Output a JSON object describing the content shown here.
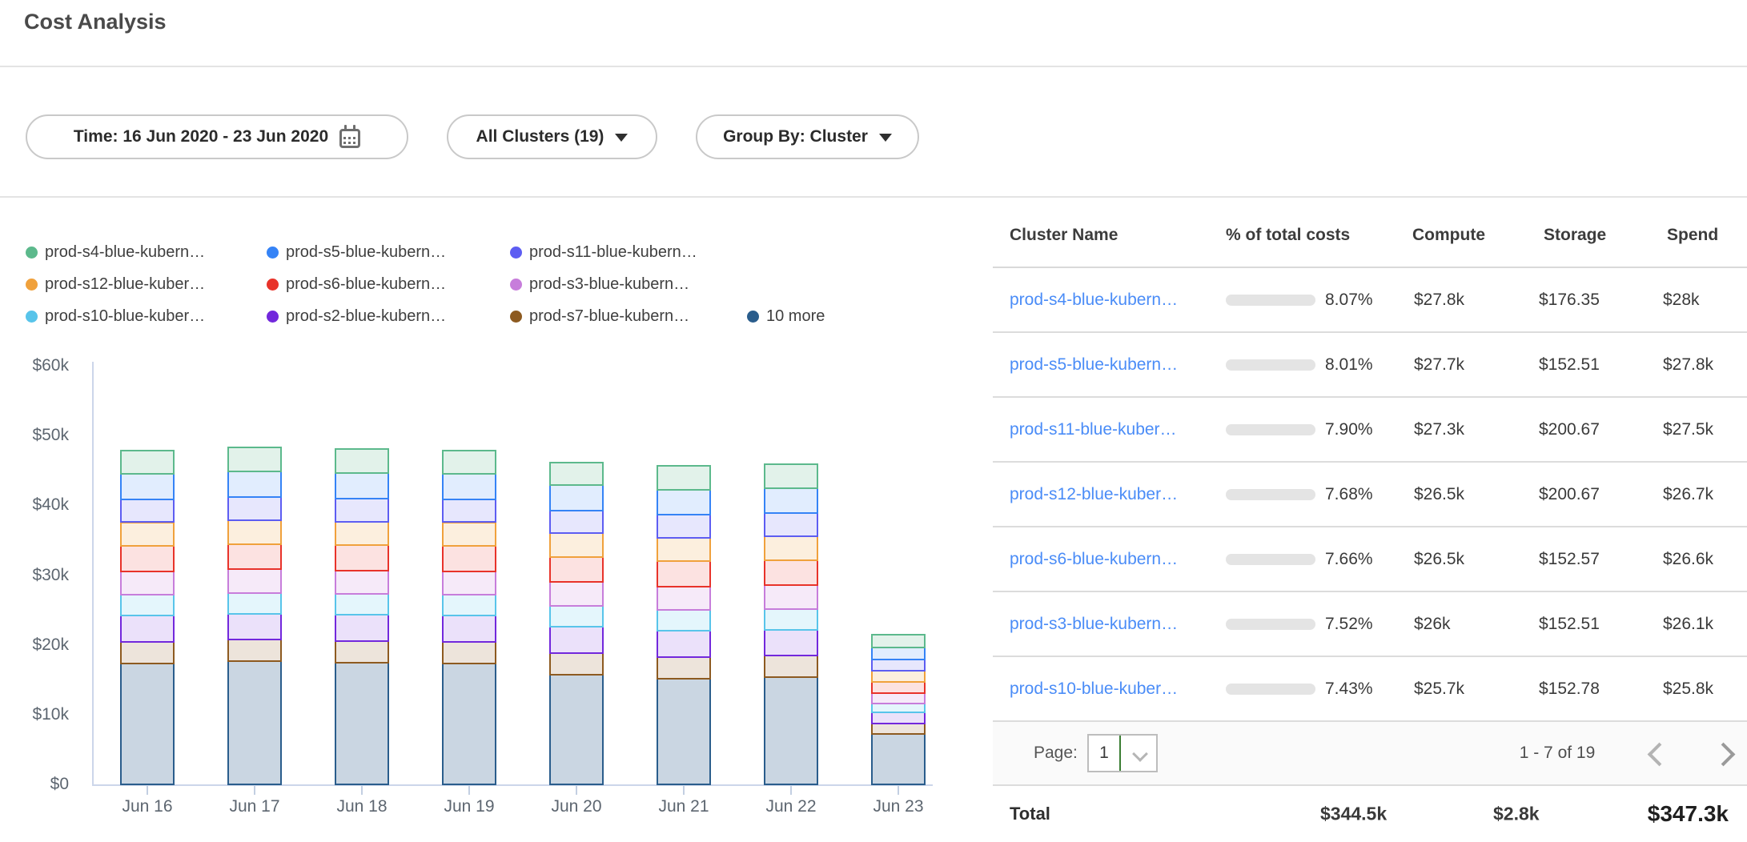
{
  "page": {
    "title": "Cost Analysis"
  },
  "filters": {
    "time_label": "Time: 16 Jun 2020 - 23 Jun 2020",
    "clusters_label": "All Clusters (19)",
    "group_by_label": "Group By: Cluster"
  },
  "chart_data": {
    "type": "bar",
    "stacked": true,
    "unit": "USD thousands",
    "categories": [
      "Jun 16",
      "Jun 17",
      "Jun 18",
      "Jun 19",
      "Jun 20",
      "Jun 21",
      "Jun 22",
      "Jun 23"
    ],
    "series": [
      {
        "name": "10 more",
        "color": "#2a5d8c",
        "fill_alpha": 0.25,
        "values": [
          17.6,
          17.9,
          17.7,
          17.6,
          16.0,
          15.4,
          15.6,
          7.5
        ]
      },
      {
        "name": "prod-s7-blue-kubern…",
        "color": "#8d5a20",
        "fill_alpha": 0.16,
        "values": [
          3.1,
          3.1,
          3.1,
          3.1,
          3.1,
          3.1,
          3.1,
          1.5
        ]
      },
      {
        "name": "prod-s2-blue-kubern…",
        "color": "#7228dc",
        "fill_alpha": 0.14,
        "values": [
          3.7,
          3.7,
          3.7,
          3.7,
          3.7,
          3.7,
          3.7,
          1.5
        ]
      },
      {
        "name": "prod-s10-blue-kuber…",
        "color": "#58c4ea",
        "fill_alpha": 0.16,
        "values": [
          3.0,
          3.0,
          3.0,
          3.0,
          3.0,
          3.0,
          3.0,
          1.3
        ]
      },
      {
        "name": "prod-s3-blue-kubern…",
        "color": "#c77ddb",
        "fill_alpha": 0.16,
        "values": [
          3.4,
          3.4,
          3.4,
          3.4,
          3.4,
          3.4,
          3.4,
          1.5
        ]
      },
      {
        "name": "prod-s6-blue-kubern…",
        "color": "#e8332a",
        "fill_alpha": 0.14,
        "values": [
          3.6,
          3.6,
          3.6,
          3.6,
          3.6,
          3.6,
          3.6,
          1.6
        ]
      },
      {
        "name": "prod-s12-blue-kuber…",
        "color": "#f0a13c",
        "fill_alpha": 0.17,
        "values": [
          3.4,
          3.4,
          3.4,
          3.4,
          3.4,
          3.4,
          3.4,
          1.6
        ]
      },
      {
        "name": "prod-s11-blue-kubern…",
        "color": "#5d5df2",
        "fill_alpha": 0.15,
        "values": [
          3.3,
          3.3,
          3.3,
          3.3,
          3.3,
          3.3,
          3.3,
          1.6
        ]
      },
      {
        "name": "prod-s5-blue-kubern…",
        "color": "#3583f6",
        "fill_alpha": 0.15,
        "values": [
          3.6,
          3.7,
          3.7,
          3.6,
          3.6,
          3.6,
          3.6,
          1.7
        ]
      },
      {
        "name": "prod-s4-blue-kubern…",
        "color": "#5cb98c",
        "fill_alpha": 0.18,
        "values": [
          3.4,
          3.4,
          3.4,
          3.4,
          3.3,
          3.4,
          3.4,
          1.9
        ]
      }
    ],
    "legend": [
      {
        "label": "prod-s4-blue-kubern…",
        "color": "#5cb98c"
      },
      {
        "label": "prod-s5-blue-kubern…",
        "color": "#3583f6"
      },
      {
        "label": "prod-s11-blue-kubern…",
        "color": "#5d5df2"
      },
      {
        "label": "prod-s12-blue-kuber…",
        "color": "#f0a13c"
      },
      {
        "label": "prod-s6-blue-kubern…",
        "color": "#e8332a"
      },
      {
        "label": "prod-s3-blue-kubern…",
        "color": "#c77ddb"
      },
      {
        "label": "prod-s10-blue-kuber…",
        "color": "#58c4ea"
      },
      {
        "label": "prod-s2-blue-kubern…",
        "color": "#7228dc"
      },
      {
        "label": "prod-s7-blue-kubern…",
        "color": "#8d5a20"
      },
      {
        "label": "10 more",
        "color": "#2a5d8c"
      }
    ],
    "title": "",
    "xlabel": "",
    "ylabel": "",
    "ylim": [
      0,
      60
    ],
    "y_ticks": [
      {
        "label": "$60k",
        "value": 60
      },
      {
        "label": "$50k",
        "value": 50
      },
      {
        "label": "$40k",
        "value": 40
      },
      {
        "label": "$30k",
        "value": 30
      },
      {
        "label": "$20k",
        "value": 20
      },
      {
        "label": "$10k",
        "value": 10
      },
      {
        "label": "$0",
        "value": 0
      }
    ],
    "grid": false,
    "legend_position": "top-left"
  },
  "table": {
    "headers": {
      "name": "Cluster Name",
      "pct": "% of total costs",
      "compute": "Compute",
      "storage": "Storage",
      "spend": "Spend"
    },
    "rows": [
      {
        "name": "prod-s4-blue-kubern…",
        "pct": "8.07%",
        "pct_value": 8.07,
        "compute": "$27.8k",
        "storage": "$176.35",
        "spend": "$28k"
      },
      {
        "name": "prod-s5-blue-kubern…",
        "pct": "8.01%",
        "pct_value": 8.01,
        "compute": "$27.7k",
        "storage": "$152.51",
        "spend": "$27.8k"
      },
      {
        "name": "prod-s11-blue-kuber…",
        "pct": "7.90%",
        "pct_value": 7.9,
        "compute": "$27.3k",
        "storage": "$200.67",
        "spend": "$27.5k"
      },
      {
        "name": "prod-s12-blue-kuber…",
        "pct": "7.68%",
        "pct_value": 7.68,
        "compute": "$26.5k",
        "storage": "$200.67",
        "spend": "$26.7k"
      },
      {
        "name": "prod-s6-blue-kubern…",
        "pct": "7.66%",
        "pct_value": 7.66,
        "compute": "$26.5k",
        "storage": "$152.57",
        "spend": "$26.6k"
      },
      {
        "name": "prod-s3-blue-kubern…",
        "pct": "7.52%",
        "pct_value": 7.52,
        "compute": "$26k",
        "storage": "$152.51",
        "spend": "$26.1k"
      },
      {
        "name": "prod-s10-blue-kuber…",
        "pct": "7.43%",
        "pct_value": 7.43,
        "compute": "$25.7k",
        "storage": "$152.78",
        "spend": "$25.8k"
      }
    ]
  },
  "pagination": {
    "page_label": "Page:",
    "page_value": "1",
    "range": "1 - 7 of 19"
  },
  "totals": {
    "label": "Total",
    "compute": "$344.5k",
    "storage": "$2.8k",
    "spend": "$347.3k"
  },
  "colors": {
    "link": "#4a8cf7",
    "progress_fill": "#4285f4",
    "progress_bg": "#e4e4e4",
    "select_divider_green": "#3a7d33"
  }
}
